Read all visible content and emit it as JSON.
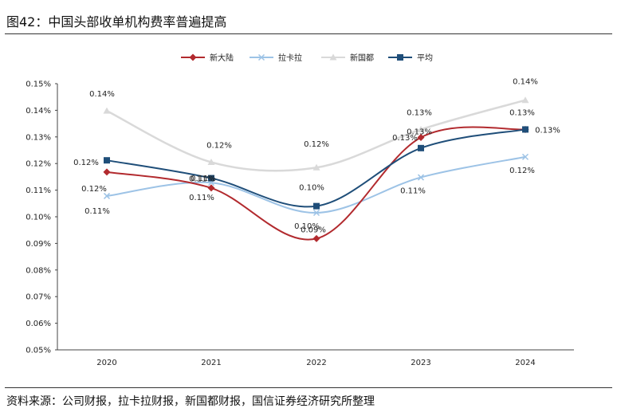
{
  "figure": {
    "title": "图42：中国头部收单机构费率普遍提高",
    "source": "资料来源：公司财报，拉卡拉财报，新国都财报，国信证券经济研究所整理"
  },
  "chart_data": {
    "type": "line",
    "title": "",
    "xlabel": "",
    "ylabel": "",
    "categories": [
      "2020",
      "2021",
      "2022",
      "2023",
      "2024"
    ],
    "ylim": [
      0.05,
      0.15
    ],
    "yticks": [
      "0.05%",
      "0.06%",
      "0.07%",
      "0.08%",
      "0.09%",
      "0.10%",
      "0.11%",
      "0.12%",
      "0.13%",
      "0.14%",
      "0.15%"
    ],
    "grid": false,
    "legend_position": "top",
    "series": [
      {
        "name": "新大陆",
        "color": "#b22a2e",
        "marker": "diamond",
        "values": [
          0.1168,
          0.1108,
          0.0918,
          0.1298,
          0.1328
        ],
        "labels": [
          "0.12%",
          "0.11%",
          "0.09%",
          "0.13%",
          "0.13%"
        ]
      },
      {
        "name": "拉卡拉",
        "color": "#9dc3e6",
        "marker": "x",
        "values": [
          0.1078,
          0.1128,
          0.1015,
          0.1148,
          0.1225
        ],
        "labels": [
          "0.11%",
          "0.11%",
          "0.10%",
          "0.11%",
          "0.12%"
        ]
      },
      {
        "name": "新国都",
        "color": "#d9d9d9",
        "marker": "triangle",
        "values": [
          0.1398,
          0.1205,
          0.1185,
          0.1328,
          0.1438
        ],
        "labels": [
          "0.14%",
          "0.12%",
          "0.12%",
          "0.13%",
          "0.14%"
        ]
      },
      {
        "name": "平均",
        "color": "#1f4e79",
        "marker": "square",
        "values": [
          0.1212,
          0.1145,
          0.104,
          0.1258,
          0.1328
        ],
        "labels": [
          "0.12%",
          "0.11%",
          "0.10%",
          "0.13%",
          "0.13%"
        ]
      }
    ]
  }
}
